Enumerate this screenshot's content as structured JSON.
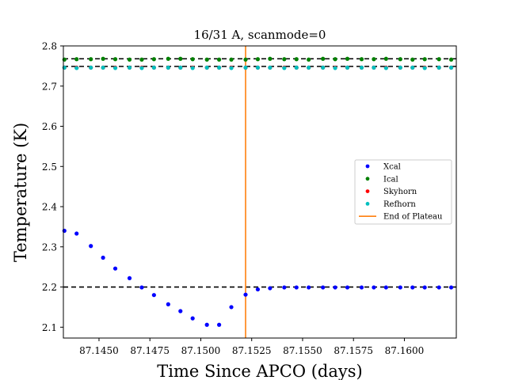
{
  "chart_data": {
    "type": "scatter",
    "title": "16/31 A, scanmode=0",
    "xlabel": "Time Since APCO (days)",
    "ylabel": "Temperature (K)",
    "xlim": [
      87.14325,
      87.16255
    ],
    "ylim": [
      2.073,
      2.8
    ],
    "x_ticks": [
      "87.1450",
      "87.1475",
      "87.1500",
      "87.1525",
      "87.1550",
      "87.1575",
      "87.1600"
    ],
    "x_tick_values": [
      87.145,
      87.1475,
      87.15,
      87.1525,
      87.155,
      87.1575,
      87.16
    ],
    "y_ticks": [
      "2.1",
      "2.2",
      "2.3",
      "2.4",
      "2.5",
      "2.6",
      "2.7",
      "2.8"
    ],
    "y_tick_values": [
      2.1,
      2.2,
      2.3,
      2.4,
      2.5,
      2.6,
      2.7,
      2.8
    ],
    "grid": false,
    "legend_position": "center-right",
    "x": [
      87.1433,
      87.1439,
      87.1446,
      87.1452,
      87.1458,
      87.1465,
      87.1471,
      87.1477,
      87.1484,
      87.149,
      87.1496,
      87.1503,
      87.1509,
      87.1515,
      87.1522,
      87.1528,
      87.1534,
      87.1541,
      87.1547,
      87.1553,
      87.156,
      87.1566,
      87.1572,
      87.1579,
      87.1585,
      87.1591,
      87.1598,
      87.1604,
      87.161,
      87.1617,
      87.1623
    ],
    "series": [
      {
        "name": "Xcal",
        "color": "#0000ff",
        "values": [
          2.34,
          2.333,
          2.302,
          2.273,
          2.246,
          2.222,
          2.199,
          2.18,
          2.157,
          2.14,
          2.122,
          2.106,
          2.106,
          2.15,
          2.181,
          2.194,
          2.197,
          2.199,
          2.199,
          2.199,
          2.199,
          2.199,
          2.199,
          2.199,
          2.199,
          2.199,
          2.199,
          2.199,
          2.199,
          2.199,
          2.199
        ]
      },
      {
        "name": "Ical",
        "color": "#008000",
        "values": [
          2.766,
          2.767,
          2.767,
          2.768,
          2.767,
          2.766,
          2.766,
          2.767,
          2.768,
          2.768,
          2.767,
          2.766,
          2.766,
          2.766,
          2.766,
          2.767,
          2.768,
          2.767,
          2.767,
          2.766,
          2.768,
          2.767,
          2.768,
          2.767,
          2.767,
          2.768,
          2.767,
          2.766,
          2.767,
          2.767,
          2.766
        ]
      },
      {
        "name": "Skyhorn",
        "color": "#ff0000",
        "values": [
          2.746,
          2.746,
          2.746,
          2.746,
          2.746,
          2.746,
          2.746,
          2.746,
          2.746,
          2.746,
          2.746,
          2.746,
          2.746,
          2.746,
          2.746,
          2.746,
          2.746,
          2.746,
          2.746,
          2.746,
          2.746,
          2.746,
          2.746,
          2.746,
          2.746,
          2.746,
          2.746,
          2.746,
          2.746,
          2.746,
          2.746
        ]
      },
      {
        "name": "Refhorn",
        "color": "#00bfbf",
        "values": [
          2.746,
          2.745,
          2.746,
          2.746,
          2.745,
          2.746,
          2.745,
          2.746,
          2.746,
          2.746,
          2.745,
          2.746,
          2.746,
          2.745,
          2.746,
          2.746,
          2.746,
          2.745,
          2.746,
          2.746,
          2.746,
          2.745,
          2.746,
          2.746,
          2.746,
          2.745,
          2.746,
          2.746,
          2.745,
          2.746,
          2.746
        ]
      }
    ],
    "reference_lines": [
      {
        "y": 2.2,
        "color": "#000000",
        "style": "dashed"
      },
      {
        "y": 2.749,
        "color": "#000000",
        "style": "dashed"
      },
      {
        "y": 2.768,
        "color": "#000000",
        "style": "dashed"
      }
    ],
    "vertical_line": {
      "name": "End of Plateau",
      "x": 87.1522,
      "color": "#ff7f0e"
    }
  }
}
